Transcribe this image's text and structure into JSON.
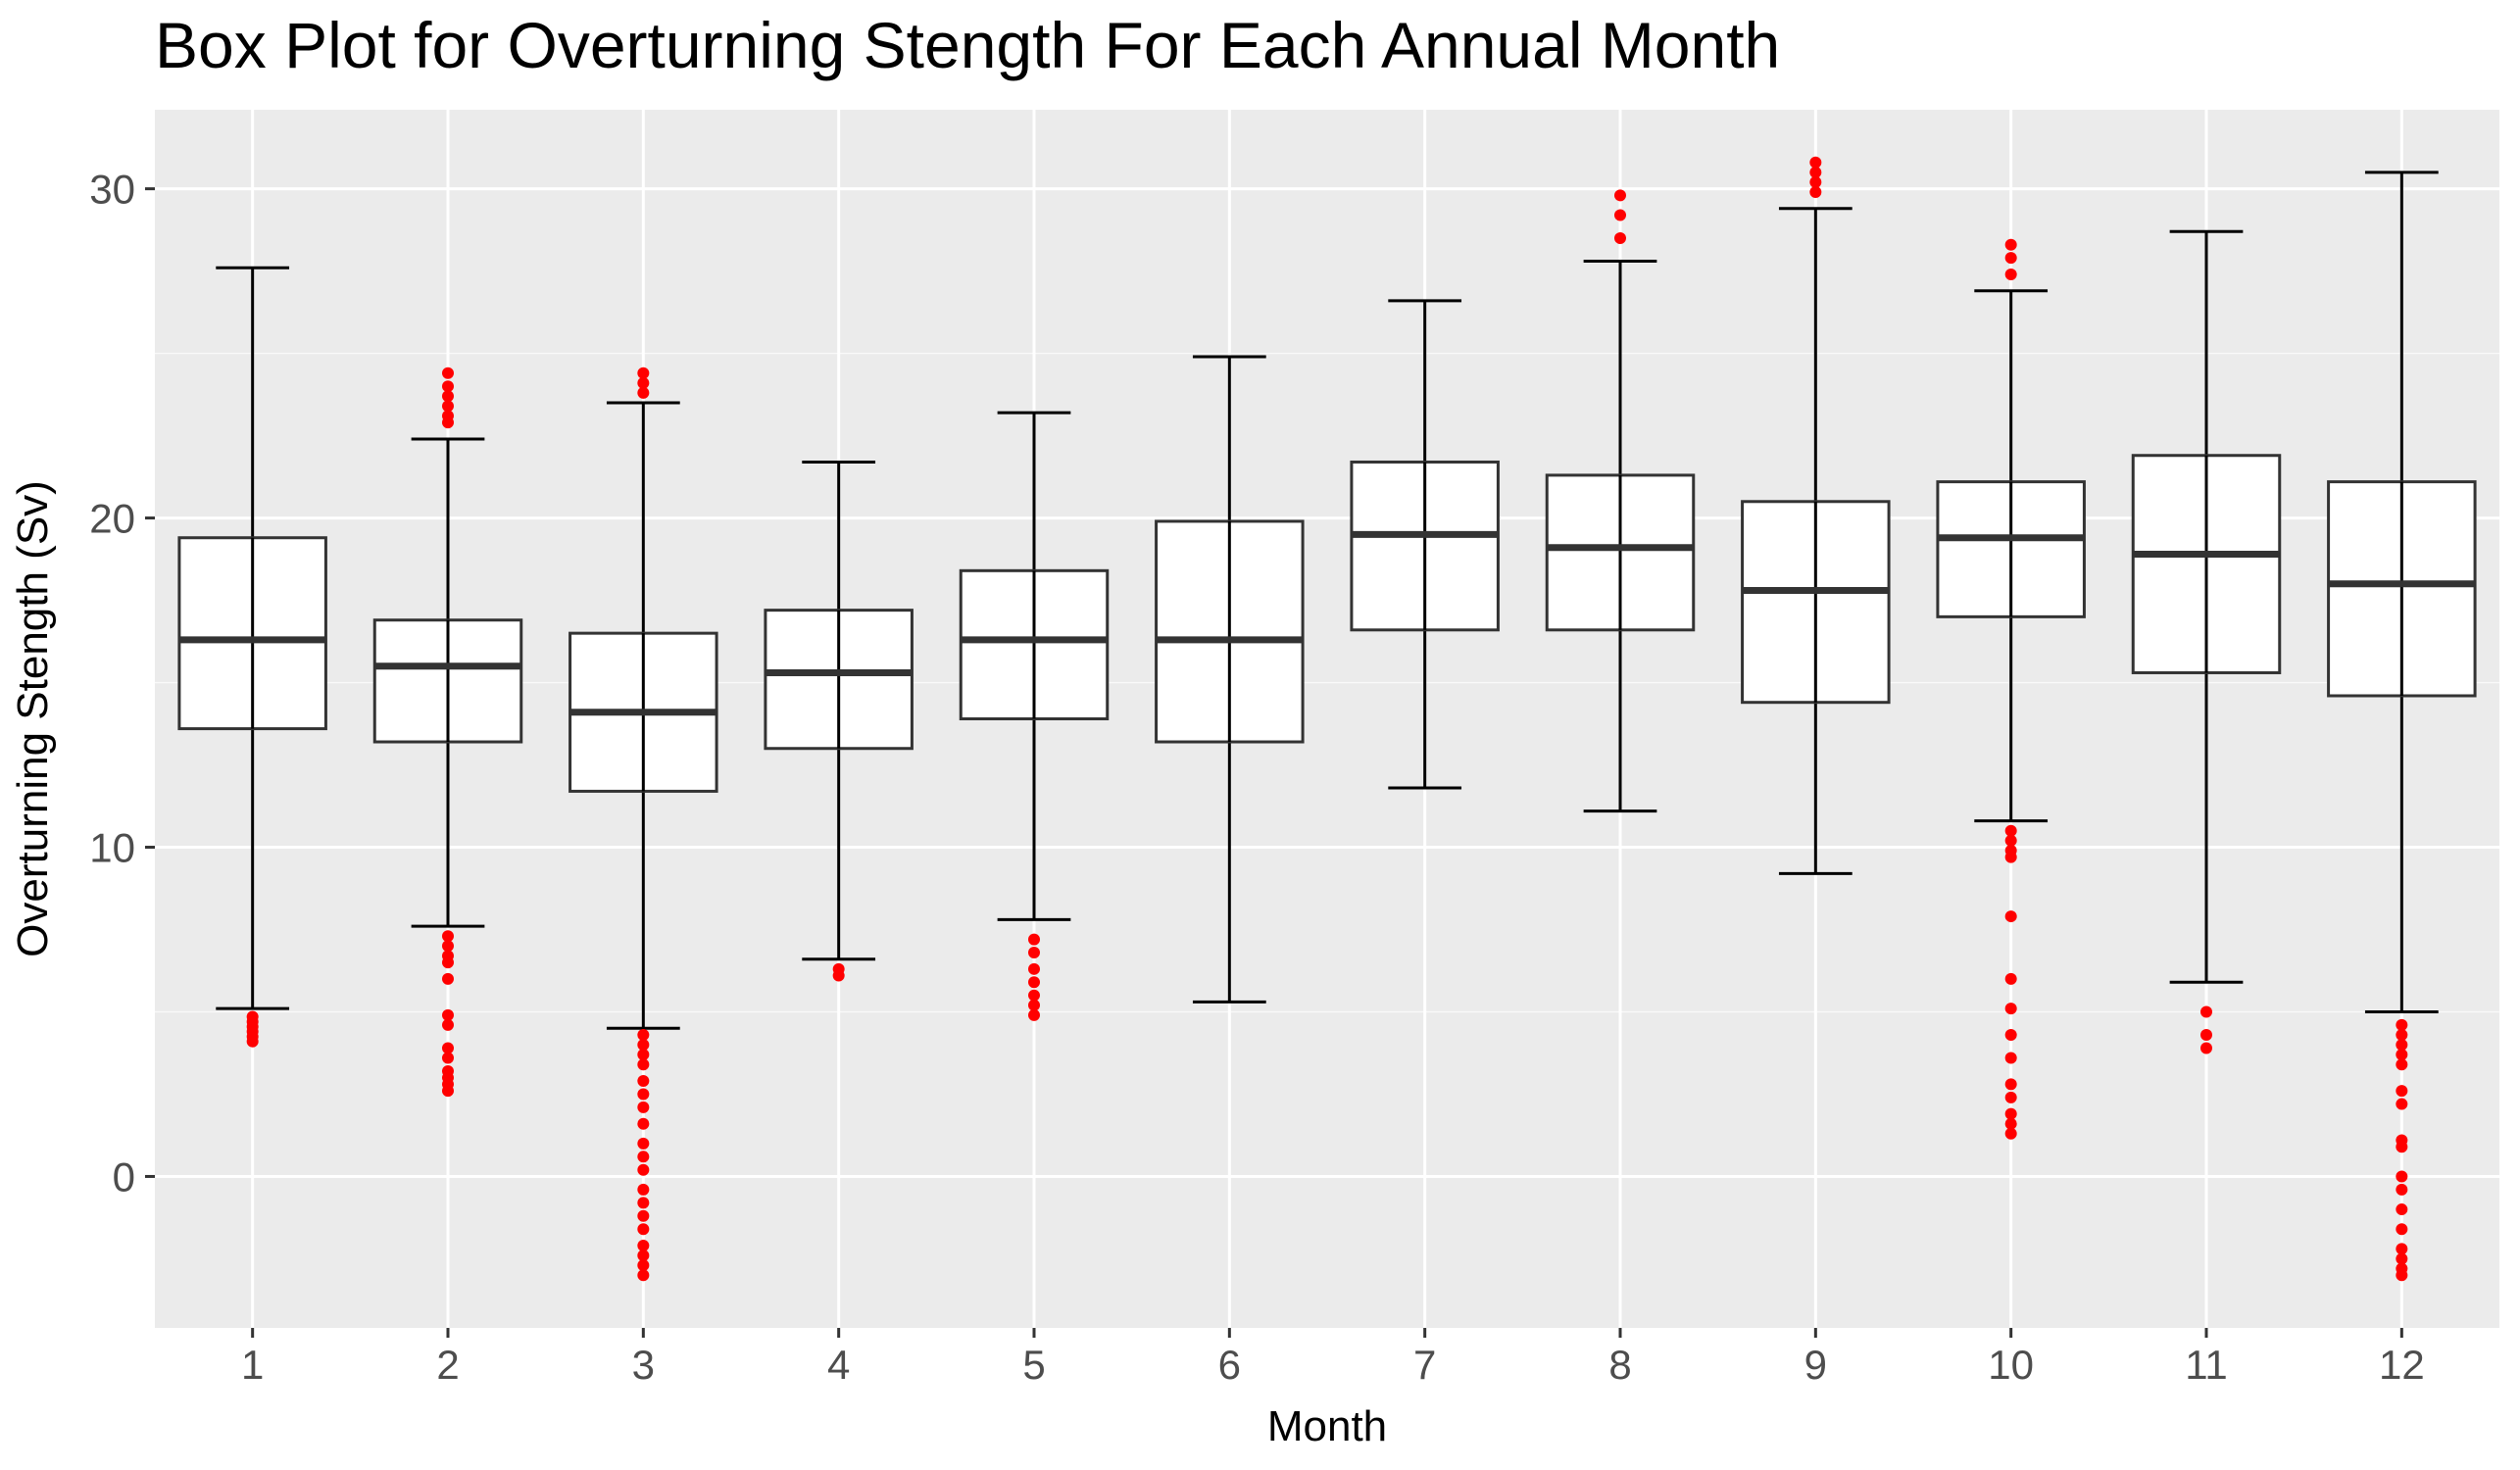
{
  "chart_data": {
    "type": "box",
    "title": "Box Plot for Overturning Stength For Each Annual Month",
    "xlabel": "Month",
    "ylabel": "Overturning Stength (Sv)",
    "ylim": [
      -4.6,
      32.4
    ],
    "yticks": [
      0,
      10,
      20,
      30
    ],
    "grid": true,
    "colors": {
      "panel": "#ebebeb",
      "grid_major": "#ffffff",
      "box_fill": "#ffffff",
      "box_line": "#333333",
      "whisker": "#000000",
      "outlier": "#ff0000"
    },
    "categories": [
      "1",
      "2",
      "3",
      "4",
      "5",
      "6",
      "7",
      "8",
      "9",
      "10",
      "11",
      "12"
    ],
    "boxes": [
      {
        "month": "1",
        "whisker_low": 5.1,
        "q1": 13.6,
        "median": 16.3,
        "q3": 19.4,
        "whisker_high": 27.6,
        "outliers": [
          4.1,
          4.25,
          4.4,
          4.55,
          4.7,
          4.85
        ]
      },
      {
        "month": "2",
        "whisker_low": 7.6,
        "q1": 13.2,
        "median": 15.5,
        "q3": 16.9,
        "whisker_high": 22.4,
        "outliers": [
          24.4,
          24.0,
          23.7,
          23.4,
          23.1,
          22.9,
          7.3,
          7.0,
          6.7,
          6.5,
          6.0,
          4.9,
          4.6,
          3.9,
          3.6,
          3.2,
          3.0,
          2.8,
          2.6
        ]
      },
      {
        "month": "3",
        "whisker_low": 4.5,
        "q1": 11.7,
        "median": 14.1,
        "q3": 16.5,
        "whisker_high": 23.5,
        "outliers": [
          24.4,
          24.1,
          23.8,
          4.3,
          4.0,
          3.7,
          3.4,
          2.9,
          2.5,
          2.1,
          1.6,
          1.0,
          0.6,
          0.2,
          -0.4,
          -0.8,
          -1.2,
          -1.6,
          -2.1,
          -2.4,
          -2.7,
          -3.0
        ]
      },
      {
        "month": "4",
        "whisker_low": 6.6,
        "q1": 13.0,
        "median": 15.3,
        "q3": 17.2,
        "whisker_high": 21.7,
        "outliers": [
          6.3,
          6.1
        ]
      },
      {
        "month": "5",
        "whisker_low": 7.8,
        "q1": 13.9,
        "median": 16.3,
        "q3": 18.4,
        "whisker_high": 23.2,
        "outliers": [
          7.2,
          6.8,
          6.3,
          5.9,
          5.5,
          5.2,
          4.9
        ]
      },
      {
        "month": "6",
        "whisker_low": 5.3,
        "q1": 13.2,
        "median": 16.3,
        "q3": 19.9,
        "whisker_high": 24.9,
        "outliers": []
      },
      {
        "month": "7",
        "whisker_low": 11.8,
        "q1": 16.6,
        "median": 19.5,
        "q3": 21.7,
        "whisker_high": 26.6,
        "outliers": []
      },
      {
        "month": "8",
        "whisker_low": 11.1,
        "q1": 16.6,
        "median": 19.1,
        "q3": 21.3,
        "whisker_high": 27.8,
        "outliers": [
          29.8,
          29.2,
          28.5
        ]
      },
      {
        "month": "9",
        "whisker_low": 9.2,
        "q1": 14.4,
        "median": 17.8,
        "q3": 20.5,
        "whisker_high": 29.4,
        "outliers": [
          30.8,
          30.5,
          30.2,
          29.9
        ]
      },
      {
        "month": "10",
        "whisker_low": 10.8,
        "q1": 17.0,
        "median": 19.4,
        "q3": 21.1,
        "whisker_high": 26.9,
        "outliers": [
          28.3,
          27.9,
          27.4,
          10.5,
          10.2,
          9.9,
          9.7,
          7.9,
          6.0,
          5.1,
          4.3,
          3.6,
          2.8,
          2.4,
          1.9,
          1.6,
          1.3
        ]
      },
      {
        "month": "11",
        "whisker_low": 5.9,
        "q1": 15.3,
        "median": 18.9,
        "q3": 21.9,
        "whisker_high": 28.7,
        "outliers": [
          5.0,
          4.3,
          3.9
        ]
      },
      {
        "month": "12",
        "whisker_low": 5.0,
        "q1": 14.6,
        "median": 18.0,
        "q3": 21.1,
        "whisker_high": 30.5,
        "outliers": [
          4.6,
          4.3,
          4.0,
          3.7,
          3.4,
          2.6,
          2.2,
          1.1,
          0.9,
          0.0,
          -0.4,
          -1.0,
          -1.6,
          -2.2,
          -2.5,
          -2.8,
          -3.0
        ]
      }
    ]
  }
}
